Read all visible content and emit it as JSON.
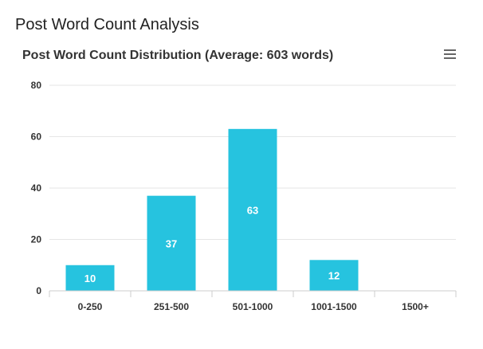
{
  "page": {
    "title": "Post Word Count Analysis"
  },
  "toolbar": {
    "menu_icon": "hamburger-menu-icon"
  },
  "colors": {
    "bar": "#26c3df",
    "grid": "#e6e6e6",
    "axis": "#cccccc"
  },
  "chart_data": {
    "type": "bar",
    "title": "Post Word Count Distribution (Average: 603 words)",
    "categories": [
      "0-250",
      "251-500",
      "501-1000",
      "1001-1500",
      "1500+"
    ],
    "values": [
      10,
      37,
      63,
      12,
      0
    ],
    "data_labels": [
      "10",
      "37",
      "63",
      "12",
      ""
    ],
    "ylim": [
      0,
      80
    ],
    "yticks": [
      0,
      20,
      40,
      60,
      80
    ],
    "xlabel": "",
    "ylabel": "",
    "grid": true,
    "legend": "none"
  }
}
